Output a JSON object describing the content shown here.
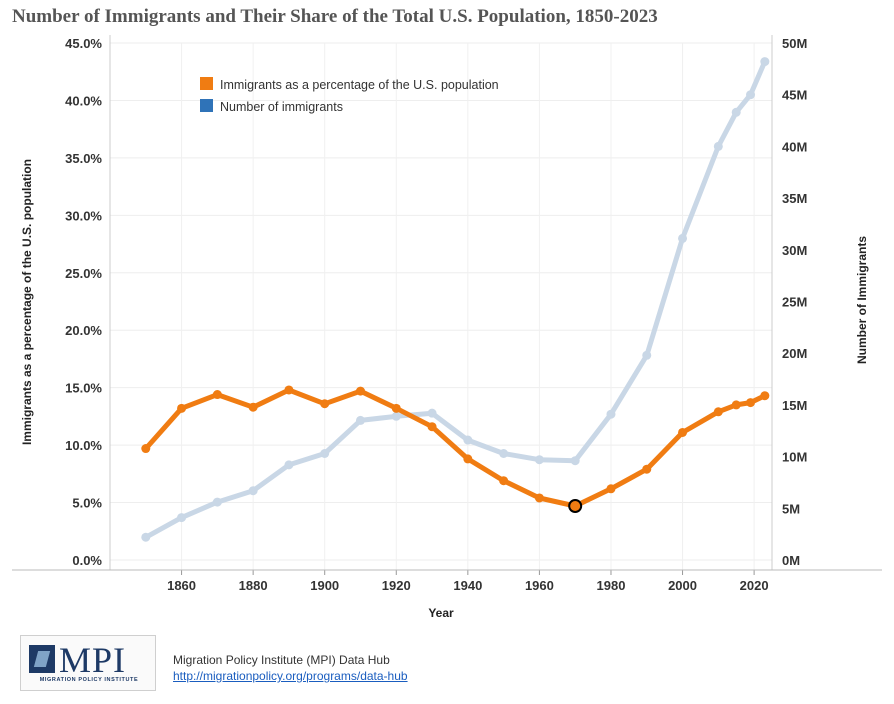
{
  "title": "Number of Immigrants and Their Share of the Total U.S. Population, 1850-2023",
  "chart_data": {
    "type": "line",
    "xlabel": "Year",
    "ylabel_left": "Immigrants as a percentage of the U.S. population",
    "ylabel_right": "Number of Immigrants",
    "x_ticks": [
      "1860",
      "1880",
      "1900",
      "1920",
      "1940",
      "1960",
      "1980",
      "2000",
      "2020"
    ],
    "x_tick_values": [
      1860,
      1880,
      1900,
      1920,
      1940,
      1960,
      1980,
      2000,
      2020
    ],
    "y_left_ticks": [
      "0.0%",
      "5.0%",
      "10.0%",
      "15.0%",
      "20.0%",
      "25.0%",
      "30.0%",
      "35.0%",
      "40.0%",
      "45.0%"
    ],
    "y_left_tick_values": [
      0,
      5,
      10,
      15,
      20,
      25,
      30,
      35,
      40,
      45
    ],
    "y_right_ticks": [
      "0M",
      "5M",
      "10M",
      "15M",
      "20M",
      "25M",
      "30M",
      "35M",
      "40M",
      "45M",
      "50M"
    ],
    "y_right_tick_values": [
      0,
      5,
      10,
      15,
      20,
      25,
      30,
      35,
      40,
      45,
      50
    ],
    "x_range": [
      1840,
      2025
    ],
    "y_left_range": [
      0,
      45
    ],
    "y_right_range": [
      0,
      50
    ],
    "grid": true,
    "legend_position": "top-left",
    "highlighted_point": {
      "year": 1970,
      "series": "Immigrants as a percentage of the U.S. population"
    },
    "series": [
      {
        "name": "Immigrants as a percentage of the U.S. population",
        "axis": "left",
        "color": "#f07c12",
        "unit": "percent",
        "x": [
          1850,
          1860,
          1870,
          1880,
          1890,
          1900,
          1910,
          1920,
          1930,
          1940,
          1950,
          1960,
          1970,
          1980,
          1990,
          2000,
          2010,
          2015,
          2019,
          2023
        ],
        "values": [
          9.7,
          13.2,
          14.4,
          13.3,
          14.8,
          13.6,
          14.7,
          13.2,
          11.6,
          8.8,
          6.9,
          5.4,
          4.7,
          6.2,
          7.9,
          11.1,
          12.9,
          13.5,
          13.7,
          14.3
        ]
      },
      {
        "name": "Number of immigrants",
        "axis": "right",
        "color": "#c9d7e6",
        "legend_color": "#2f73b8",
        "unit": "millions",
        "x": [
          1850,
          1860,
          1870,
          1880,
          1890,
          1900,
          1910,
          1920,
          1930,
          1940,
          1950,
          1960,
          1970,
          1980,
          1990,
          2000,
          2010,
          2015,
          2019,
          2023
        ],
        "values": [
          2.2,
          4.1,
          5.6,
          6.7,
          9.2,
          10.3,
          13.5,
          13.9,
          14.2,
          11.6,
          10.3,
          9.7,
          9.6,
          14.1,
          19.8,
          31.1,
          40.0,
          43.3,
          45.0,
          48.2
        ]
      }
    ]
  },
  "footer": {
    "logo_text": "MPI",
    "logo_subtext": "MIGRATION POLICY INSTITUTE",
    "source_line": "Migration Policy Institute (MPI) Data Hub",
    "source_link": "http://migrationpolicy.org/programs/data-hub"
  }
}
